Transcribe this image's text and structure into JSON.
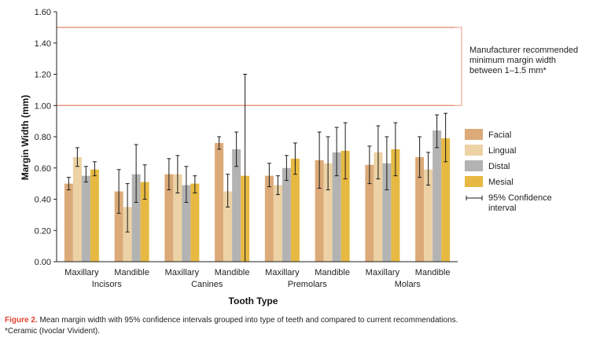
{
  "chart_data": {
    "type": "bar",
    "ylabel": "Margin Width (mm)",
    "xlabel": "Tooth Type",
    "ylim": [
      0,
      1.6
    ],
    "yticks": [
      "0.00",
      "0.20",
      "0.40",
      "0.60",
      "0.80",
      "1.00",
      "1.20",
      "1.40",
      "1.60"
    ],
    "categories": [
      "Maxillary Incisors",
      "Mandible Incisors",
      "Maxillary Canines",
      "Mandible Canines",
      "Maxillary Premolars",
      "Mandible Premolars",
      "Maxillary Molars",
      "Mandible Molars"
    ],
    "category_labels": [
      "Maxillary",
      "Mandible",
      "Maxillary",
      "Mandible",
      "Maxillary",
      "Mandible",
      "Maxillary",
      "Mandible"
    ],
    "group_labels": [
      "Incisors",
      "Canines",
      "Premolars",
      "Molars"
    ],
    "series": [
      {
        "name": "Facial",
        "color": "#dcaa78",
        "values": [
          0.5,
          0.45,
          0.56,
          0.76,
          0.55,
          0.65,
          0.62,
          0.67
        ],
        "ci_low": [
          0.46,
          0.31,
          0.46,
          0.72,
          0.48,
          0.47,
          0.5,
          0.54
        ],
        "ci_high": [
          0.54,
          0.59,
          0.66,
          0.8,
          0.63,
          0.83,
          0.74,
          0.8
        ]
      },
      {
        "name": "Lingual",
        "color": "#ecd2a4",
        "values": [
          0.67,
          0.35,
          0.56,
          0.45,
          0.49,
          0.63,
          0.7,
          0.59
        ],
        "ci_low": [
          0.61,
          0.19,
          0.44,
          0.35,
          0.43,
          0.46,
          0.53,
          0.49
        ],
        "ci_high": [
          0.73,
          0.5,
          0.68,
          0.56,
          0.55,
          0.8,
          0.87,
          0.7
        ]
      },
      {
        "name": "Distal",
        "color": "#b3b3b3",
        "values": [
          0.55,
          0.56,
          0.49,
          0.72,
          0.6,
          0.7,
          0.63,
          0.84
        ],
        "ci_low": [
          0.51,
          0.38,
          0.38,
          0.61,
          0.52,
          0.55,
          0.46,
          0.73
        ],
        "ci_high": [
          0.61,
          0.75,
          0.61,
          0.83,
          0.68,
          0.86,
          0.8,
          0.94
        ]
      },
      {
        "name": "Mesial",
        "color": "#e7b942",
        "values": [
          0.59,
          0.51,
          0.5,
          0.55,
          0.66,
          0.71,
          0.72,
          0.79
        ],
        "ci_low": [
          0.55,
          0.4,
          0.44,
          0.0,
          0.56,
          0.53,
          0.55,
          0.64
        ],
        "ci_high": [
          0.64,
          0.62,
          0.55,
          1.2,
          0.76,
          0.89,
          0.89,
          0.95
        ]
      }
    ],
    "reference_lines": [
      1.0,
      1.5
    ],
    "reference_color": "#e89a82",
    "annotation": [
      "Manufacturer recommended",
      "minimum margin width",
      "between 1–1.5 mm*"
    ],
    "ci_legend": [
      "95% Confidence",
      "interval"
    ]
  },
  "caption": {
    "label": "Figure 2.",
    "text": " Mean margin width with 95% confidence intervals grouped into type of teeth and compared to current recommendations.",
    "note": "*Ceramic (Ivoclar Vivident)."
  }
}
